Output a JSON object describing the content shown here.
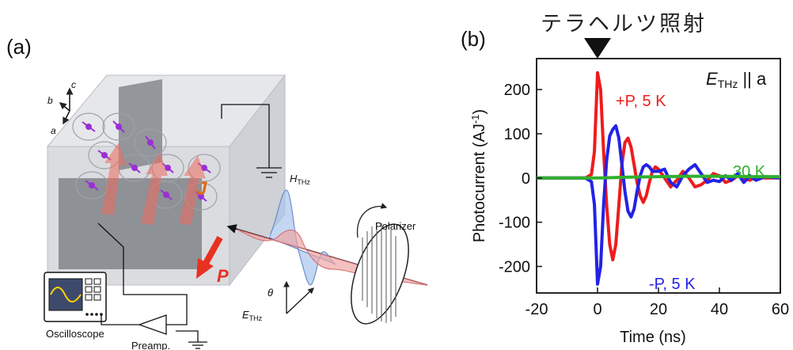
{
  "panel_a": {
    "label": "(a)",
    "axis_labels": {
      "a": "a",
      "b": "b",
      "c": "c"
    },
    "current_label": "J",
    "polarization_label": "P",
    "h_field_label": {
      "main": "H",
      "sub": "THz"
    },
    "e_field_label": {
      "main": "E",
      "sub": "THz"
    },
    "theta_label": "θ",
    "polarizer_label": "Polarizer",
    "oscilloscope_label": "Oscilloscope",
    "preamp_label": "Preamp.",
    "colors": {
      "arrow_red": "#e8311f",
      "current_orange": "#e06a12",
      "spin_purple": "#9b2fd6",
      "h_wave_blue": "#a9c4ec",
      "e_wave_red": "#f0a5a5"
    }
  },
  "panel_b": {
    "label": "(b)",
    "header_jp": "テラヘルツ照射",
    "field_condition": {
      "main": "E",
      "sub": "THz",
      "tail": " || a"
    },
    "chart_data": {
      "type": "line",
      "xlabel": "Time (ns)",
      "ylabel": {
        "main": "Photocurrent (AJ",
        "sup": "-1",
        "tail": ")"
      },
      "xlim": [
        -20,
        60
      ],
      "ylim": [
        -260,
        270
      ],
      "x_ticks": [
        -20,
        0,
        20,
        40,
        60
      ],
      "y_ticks": [
        200,
        100,
        0,
        -100,
        -200
      ],
      "excitation_marker_x": 0,
      "series": [
        {
          "name": "+P, 5 K",
          "color": "#ee1c1c",
          "points": [
            [
              -20,
              0
            ],
            [
              -4,
              0
            ],
            [
              -2,
              8
            ],
            [
              -1,
              60
            ],
            [
              0,
              238
            ],
            [
              1,
              200
            ],
            [
              2,
              60
            ],
            [
              3,
              -60
            ],
            [
              4,
              -150
            ],
            [
              5,
              -185
            ],
            [
              6,
              -150
            ],
            [
              7,
              -60
            ],
            [
              8,
              30
            ],
            [
              9,
              80
            ],
            [
              10,
              90
            ],
            [
              11,
              70
            ],
            [
              12,
              30
            ],
            [
              13,
              -10
            ],
            [
              14,
              -40
            ],
            [
              15,
              -55
            ],
            [
              16,
              -40
            ],
            [
              17,
              -10
            ],
            [
              18,
              15
            ],
            [
              19,
              25
            ],
            [
              20,
              20
            ],
            [
              22,
              0
            ],
            [
              24,
              -20
            ],
            [
              26,
              -5
            ],
            [
              28,
              15
            ],
            [
              30,
              0
            ],
            [
              32,
              -20
            ],
            [
              34,
              -15
            ],
            [
              36,
              -5
            ],
            [
              38,
              10
            ],
            [
              40,
              5
            ],
            [
              42,
              -10
            ],
            [
              44,
              -5
            ],
            [
              46,
              5
            ],
            [
              48,
              0
            ],
            [
              50,
              -5
            ],
            [
              52,
              3
            ],
            [
              55,
              0
            ],
            [
              60,
              0
            ]
          ]
        },
        {
          "name": "-P, 5 K",
          "color": "#2222e8",
          "points": [
            [
              -20,
              0
            ],
            [
              -4,
              0
            ],
            [
              -2,
              -8
            ],
            [
              -1,
              -60
            ],
            [
              0,
              -240
            ],
            [
              1,
              -200
            ],
            [
              2,
              -60
            ],
            [
              3,
              40
            ],
            [
              4,
              95
            ],
            [
              5,
              110
            ],
            [
              6,
              118
            ],
            [
              7,
              90
            ],
            [
              8,
              30
            ],
            [
              9,
              -30
            ],
            [
              10,
              -75
            ],
            [
              11,
              -88
            ],
            [
              12,
              -70
            ],
            [
              13,
              -30
            ],
            [
              14,
              5
            ],
            [
              15,
              25
            ],
            [
              16,
              30
            ],
            [
              17,
              25
            ],
            [
              18,
              15
            ],
            [
              20,
              15
            ],
            [
              22,
              20
            ],
            [
              24,
              -10
            ],
            [
              26,
              -20
            ],
            [
              28,
              5
            ],
            [
              30,
              20
            ],
            [
              32,
              30
            ],
            [
              34,
              10
            ],
            [
              36,
              -10
            ],
            [
              38,
              -5
            ],
            [
              40,
              -8
            ],
            [
              42,
              5
            ],
            [
              44,
              -5
            ],
            [
              46,
              10
            ],
            [
              48,
              -10
            ],
            [
              50,
              5
            ],
            [
              52,
              -5
            ],
            [
              55,
              3
            ],
            [
              60,
              0
            ]
          ]
        },
        {
          "name": "30 K",
          "color": "#2fb02f",
          "points": [
            [
              -20,
              0
            ],
            [
              0,
              0
            ],
            [
              10,
              2
            ],
            [
              20,
              3
            ],
            [
              30,
              4
            ],
            [
              40,
              4
            ],
            [
              50,
              3
            ],
            [
              60,
              3
            ]
          ]
        }
      ]
    }
  }
}
